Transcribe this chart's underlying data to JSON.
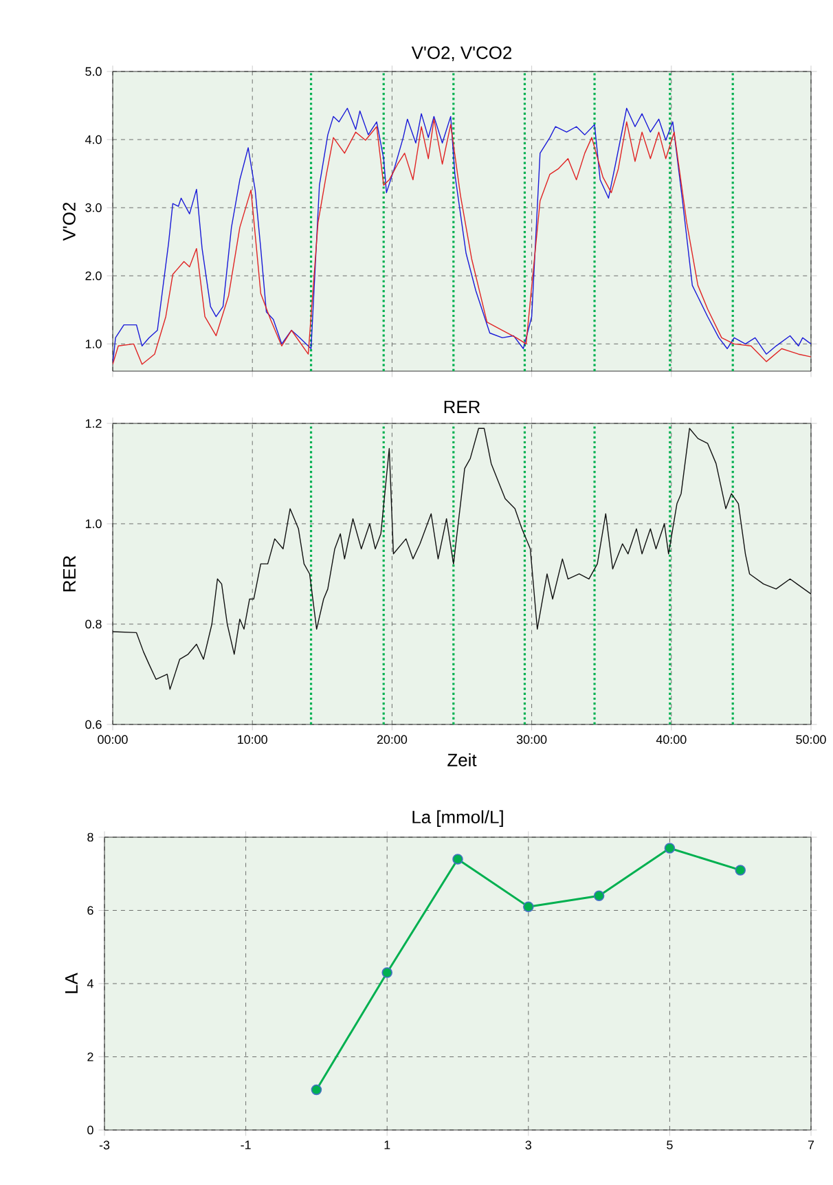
{
  "chart_data": [
    {
      "type": "line",
      "title": "V'O2, V'CO2",
      "ylabel": "V'O2",
      "tick_labels": "y",
      "grid": true,
      "line_style": "solid",
      "xlim": [
        0,
        50
      ],
      "xticks": [
        0,
        10,
        20,
        30,
        40,
        50
      ],
      "ylim": [
        0.6,
        5.0
      ],
      "yticks": [
        {
          "value": 1,
          "label": "1.0"
        },
        {
          "value": 2,
          "label": "2.0"
        },
        {
          "value": 3,
          "label": "3.0"
        },
        {
          "value": 4,
          "label": "4.0"
        },
        {
          "value": 5,
          "label": "5.0"
        }
      ],
      "ref_lines": [
        {
          "axis": "x",
          "value": 14.2,
          "color": "#00b050",
          "line_style": "dotted"
        },
        {
          "axis": "x",
          "value": 19.4,
          "color": "#00b050",
          "line_style": "dotted"
        },
        {
          "axis": "x",
          "value": 24.4,
          "color": "#00b050",
          "line_style": "dotted"
        },
        {
          "axis": "x",
          "value": 29.5,
          "color": "#00b050",
          "line_style": "dotted"
        },
        {
          "axis": "x",
          "value": 34.5,
          "color": "#00b050",
          "line_style": "dotted"
        },
        {
          "axis": "x",
          "value": 39.9,
          "color": "#00b050",
          "line_style": "dotted"
        },
        {
          "axis": "x",
          "value": 44.4,
          "color": "#00b050",
          "line_style": "dotted"
        }
      ],
      "series": [
        {
          "color": "#1a1ad8",
          "x": [
            0,
            0.2,
            0.8,
            1.7,
            2.1,
            2.6,
            3.2,
            4.0,
            4.3,
            4.7,
            4.9,
            5.5,
            6.0,
            6.4,
            7.0,
            7.4,
            7.9,
            8.5,
            9.1,
            9.7,
            10.2,
            10.6,
            11.0,
            11.5,
            12.1,
            12.8,
            13.4,
            14.2,
            14.8,
            15.4,
            15.8,
            16.2,
            16.8,
            17.4,
            17.7,
            18.3,
            18.9,
            19.4,
            19.6,
            20.2,
            20.8,
            21.1,
            21.7,
            22.1,
            22.6,
            23.0,
            23.6,
            24.2,
            24.5,
            25.3,
            26.0,
            27.0,
            27.9,
            28.7,
            29.4,
            30.0,
            30.6,
            31.3,
            31.7,
            32.5,
            33.2,
            33.8,
            34.5,
            34.9,
            35.5,
            36.0,
            36.8,
            37.4,
            37.9,
            38.5,
            39.1,
            39.6,
            40.1,
            40.8,
            41.5,
            42.6,
            43.4,
            44.0,
            44.5,
            45.3,
            46.0,
            46.8,
            47.5,
            48.5,
            49.1,
            49.4,
            50.0
          ],
          "values": [
            0.7,
            1.09,
            1.28,
            1.28,
            0.97,
            1.09,
            1.2,
            2.48,
            3.06,
            3.02,
            3.14,
            2.91,
            3.27,
            2.4,
            1.55,
            1.4,
            1.55,
            2.71,
            3.41,
            3.88,
            3.26,
            2.4,
            1.47,
            1.36,
            1.0,
            1.2,
            1.09,
            0.93,
            3.33,
            4.07,
            4.34,
            4.26,
            4.46,
            4.15,
            4.42,
            4.07,
            4.26,
            3.72,
            3.22,
            3.6,
            4.03,
            4.3,
            3.95,
            4.38,
            4.03,
            4.34,
            3.95,
            4.34,
            3.49,
            2.33,
            1.78,
            1.16,
            1.09,
            1.12,
            0.93,
            1.4,
            3.8,
            4.03,
            4.19,
            4.11,
            4.19,
            4.07,
            4.22,
            3.41,
            3.14,
            3.64,
            4.46,
            4.19,
            4.38,
            4.11,
            4.3,
            3.99,
            4.26,
            3.1,
            1.86,
            1.4,
            1.09,
            0.93,
            1.09,
            1.0,
            1.09,
            0.85,
            0.97,
            1.12,
            0.97,
            1.09,
            1.0
          ]
        },
        {
          "color": "#e02424",
          "x": [
            0,
            0.4,
            1.5,
            2.1,
            3.0,
            3.8,
            4.3,
            5.1,
            5.5,
            6.0,
            6.6,
            7.4,
            8.3,
            9.1,
            9.9,
            10.6,
            11.3,
            12.1,
            12.8,
            14.0,
            14.7,
            15.3,
            15.8,
            16.6,
            17.4,
            18.1,
            18.9,
            19.4,
            19.8,
            20.4,
            20.9,
            21.5,
            22.1,
            22.6,
            23.0,
            23.6,
            24.2,
            24.9,
            25.7,
            26.8,
            27.9,
            28.9,
            29.6,
            30.6,
            31.3,
            31.9,
            32.6,
            33.2,
            33.8,
            34.3,
            35.1,
            35.7,
            36.2,
            36.8,
            37.4,
            37.9,
            38.5,
            39.1,
            39.6,
            40.2,
            41.1,
            41.9,
            42.6,
            43.6,
            44.5,
            45.7,
            46.8,
            47.9,
            49.1,
            50.0
          ],
          "values": [
            0.7,
            0.97,
            1.0,
            0.7,
            0.85,
            1.4,
            2.02,
            2.21,
            2.13,
            2.4,
            1.4,
            1.12,
            1.71,
            2.71,
            3.26,
            1.74,
            1.36,
            0.97,
            1.2,
            0.85,
            2.78,
            3.49,
            4.03,
            3.8,
            4.11,
            3.99,
            4.19,
            3.33,
            3.41,
            3.64,
            3.8,
            3.41,
            4.19,
            3.72,
            4.3,
            3.64,
            4.22,
            3.18,
            2.25,
            1.32,
            1.2,
            1.09,
            1.0,
            3.1,
            3.49,
            3.57,
            3.72,
            3.41,
            3.8,
            4.03,
            3.45,
            3.22,
            3.57,
            4.26,
            3.68,
            4.11,
            3.72,
            4.11,
            3.72,
            4.11,
            2.78,
            1.86,
            1.51,
            1.09,
            1.0,
            0.97,
            0.74,
            0.93,
            0.85,
            0.81
          ]
        }
      ]
    },
    {
      "type": "line",
      "title": "RER",
      "xlabel": "Zeit",
      "ylabel": "RER",
      "grid": true,
      "line_style": "solid",
      "xlim": [
        0,
        50
      ],
      "xticks": [
        {
          "value": 0,
          "label": "00:00"
        },
        {
          "value": 10,
          "label": "10:00"
        },
        {
          "value": 20,
          "label": "20:00"
        },
        {
          "value": 30,
          "label": "30:00"
        },
        {
          "value": 40,
          "label": "40:00"
        },
        {
          "value": 50,
          "label": "50:00"
        }
      ],
      "ylim": [
        0.6,
        1.2
      ],
      "yticks": [
        {
          "value": 0.6,
          "label": "0.6"
        },
        {
          "value": 0.8,
          "label": "0.8"
        },
        {
          "value": 1.0,
          "label": "1.0"
        },
        {
          "value": 1.2,
          "label": "1.2"
        }
      ],
      "ref_lines": [
        {
          "axis": "x",
          "value": 14.2,
          "color": "#00b050",
          "line_style": "dotted"
        },
        {
          "axis": "x",
          "value": 19.4,
          "color": "#00b050",
          "line_style": "dotted"
        },
        {
          "axis": "x",
          "value": 24.4,
          "color": "#00b050",
          "line_style": "dotted"
        },
        {
          "axis": "x",
          "value": 29.5,
          "color": "#00b050",
          "line_style": "dotted"
        },
        {
          "axis": "x",
          "value": 34.5,
          "color": "#00b050",
          "line_style": "dotted"
        },
        {
          "axis": "x",
          "value": 39.9,
          "color": "#00b050",
          "line_style": "dotted"
        },
        {
          "axis": "x",
          "value": 44.4,
          "color": "#00b050",
          "line_style": "dotted"
        }
      ],
      "series": [
        {
          "color": "#111111",
          "x": [
            0,
            1.7,
            2.2,
            2.6,
            3.1,
            3.9,
            4.1,
            4.8,
            5.4,
            6.0,
            6.5,
            7.1,
            7.5,
            7.8,
            8.2,
            8.7,
            9.1,
            9.4,
            9.8,
            10.1,
            10.6,
            11.1,
            11.6,
            12.2,
            12.7,
            13.3,
            13.7,
            14.1,
            14.6,
            15.1,
            15.4,
            15.9,
            16.3,
            16.6,
            17.2,
            17.8,
            18.4,
            18.8,
            19.2,
            19.8,
            20.1,
            21.0,
            21.5,
            22.0,
            22.8,
            23.3,
            23.9,
            24.4,
            25.2,
            25.6,
            26.2,
            26.6,
            27.1,
            28.1,
            28.8,
            29.3,
            29.9,
            30.4,
            31.1,
            31.5,
            32.2,
            32.6,
            33.4,
            34.1,
            34.7,
            35.3,
            35.8,
            36.5,
            36.9,
            37.5,
            37.9,
            38.5,
            38.9,
            39.5,
            39.8,
            40.4,
            40.7,
            41.3,
            41.9,
            42.6,
            43.2,
            43.9,
            44.3,
            44.8,
            45.3,
            45.6,
            46.6,
            47.5,
            48.5,
            49.0,
            50.0
          ],
          "values": [
            0.785,
            0.783,
            0.745,
            0.72,
            0.69,
            0.7,
            0.67,
            0.73,
            0.74,
            0.76,
            0.73,
            0.8,
            0.89,
            0.88,
            0.8,
            0.74,
            0.81,
            0.79,
            0.85,
            0.85,
            0.92,
            0.92,
            0.97,
            0.95,
            1.03,
            0.99,
            0.92,
            0.9,
            0.79,
            0.85,
            0.87,
            0.95,
            0.98,
            0.93,
            1.01,
            0.95,
            1.0,
            0.95,
            0.98,
            1.15,
            0.94,
            0.97,
            0.93,
            0.96,
            1.02,
            0.93,
            1.01,
            0.92,
            1.11,
            1.13,
            1.19,
            1.19,
            1.12,
            1.05,
            1.03,
            0.99,
            0.95,
            0.79,
            0.9,
            0.85,
            0.93,
            0.89,
            0.9,
            0.89,
            0.92,
            1.02,
            0.91,
            0.96,
            0.94,
            0.99,
            0.94,
            0.99,
            0.95,
            1.0,
            0.94,
            1.04,
            1.06,
            1.19,
            1.17,
            1.16,
            1.12,
            1.03,
            1.06,
            1.04,
            0.94,
            0.9,
            0.88,
            0.87,
            0.89,
            0.88,
            0.86
          ]
        }
      ]
    },
    {
      "type": "line",
      "title": "La [mmol/L]",
      "ylabel": "LA",
      "grid": true,
      "marker": "circle",
      "line_style": "solid",
      "xlim": [
        -3,
        7
      ],
      "xticks": [
        -3,
        -1,
        1,
        3,
        5,
        7
      ],
      "ylim": [
        0,
        8
      ],
      "yticks": [
        0,
        2,
        4,
        6,
        8
      ],
      "series": [
        {
          "color": "#00b050",
          "x": [
            0,
            1,
            2,
            3,
            4,
            5,
            6
          ],
          "values": [
            1.1,
            4.3,
            7.4,
            6.1,
            6.4,
            7.7,
            7.1
          ]
        }
      ]
    }
  ]
}
